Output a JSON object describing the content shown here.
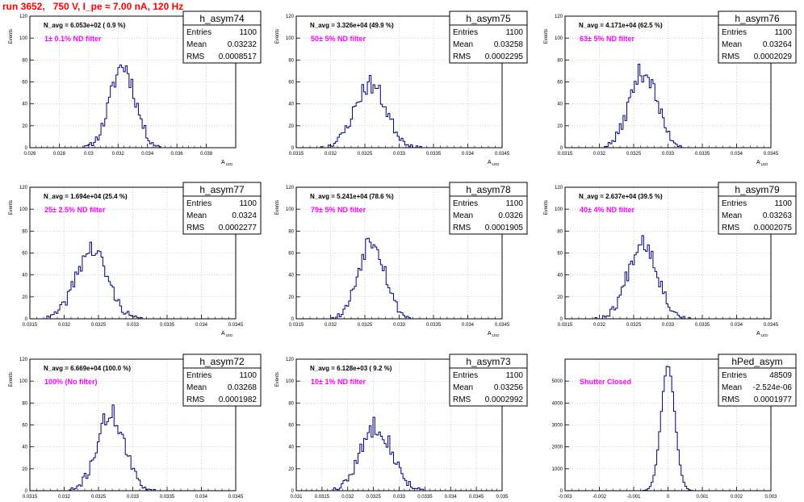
{
  "page_title": "run 3652,   750 V, I_pe ≈ 7.00 nA, 120 Hz",
  "colors": {
    "hist": "#000080",
    "annotation": "#ff00ff",
    "title": "#ff0000",
    "grid": "#b4b4b4"
  },
  "stat_labels": {
    "entries": "Entries",
    "mean": "Mean",
    "rms": "RMS"
  },
  "chart_data": [
    {
      "type": "histogram",
      "name": "h_asym74",
      "entries": "1100",
      "mean": "0.03232",
      "rms": "0.0008517",
      "navg": "N_avg = 6.053e+02 ( 0.9 %)",
      "annotation": "1± 0.1% ND filter",
      "xlabel": "A_LED",
      "ylabel": "Events",
      "xlim": [
        0.026,
        0.04
      ],
      "ylim": [
        0,
        120
      ],
      "grid": true,
      "xticks": [
        0.026,
        0.028,
        0.03,
        0.032,
        0.034,
        0.036,
        0.038
      ],
      "xtick_labels": [
        "0.026",
        "0.028",
        "0.03",
        "0.032",
        "0.034",
        "0.036",
        "0.038"
      ],
      "yticks": [
        0,
        20,
        40,
        60,
        80,
        100,
        120
      ],
      "peak_x": 0.03232,
      "sigma": 0.00085,
      "peak_y": 75,
      "seed": 11
    },
    {
      "type": "histogram",
      "name": "h_asym75",
      "entries": "1100",
      "mean": "0.03258",
      "rms": "0.0002295",
      "navg": "N_avg = 3.326e+04 (49.9 %)",
      "annotation": "50± 5% ND filter",
      "xlabel": "A_LED",
      "ylabel": "Events",
      "xlim": [
        0.0315,
        0.0345
      ],
      "ylim": [
        0,
        120
      ],
      "grid": true,
      "xticks": [
        0.0315,
        0.032,
        0.0325,
        0.033,
        0.0335,
        0.034,
        0.0345
      ],
      "xtick_labels": [
        "0.0315",
        "0.032",
        "0.0325",
        "0.033",
        "0.0335",
        "0.034",
        "0.0345"
      ],
      "yticks": [
        0,
        20,
        40,
        60,
        80,
        100,
        120
      ],
      "peak_x": 0.03258,
      "sigma": 0.00023,
      "peak_y": 58,
      "seed": 23
    },
    {
      "type": "histogram",
      "name": "h_asym76",
      "entries": "1100",
      "mean": "0.03264",
      "rms": "0.0002029",
      "navg": "N_avg = 4.171e+04 (62.5 %)",
      "annotation": "63± 5% ND filter",
      "xlabel": "A_LED",
      "ylabel": "Events",
      "xlim": [
        0.0315,
        0.0345
      ],
      "ylim": [
        0,
        120
      ],
      "grid": true,
      "xticks": [
        0.0315,
        0.032,
        0.0325,
        0.033,
        0.0335,
        0.034,
        0.0345
      ],
      "xtick_labels": [
        "0.0315",
        "0.032",
        "0.0325",
        "0.033",
        "0.0335",
        "0.034",
        "0.0345"
      ],
      "yticks": [
        0,
        20,
        40,
        60,
        80,
        100,
        120
      ],
      "peak_x": 0.03264,
      "sigma": 0.0002,
      "peak_y": 70,
      "seed": 37
    },
    {
      "type": "histogram",
      "name": "h_asym77",
      "entries": "1100",
      "mean": "0.0324",
      "rms": "0.0002277",
      "navg": "N_avg = 1.694e+04 (25.4 %)",
      "annotation": "25± 2.5% ND filter",
      "xlabel": "A_LED",
      "ylabel": "Events",
      "xlim": [
        0.0315,
        0.0345
      ],
      "ylim": [
        0,
        120
      ],
      "grid": true,
      "xticks": [
        0.0315,
        0.032,
        0.0325,
        0.033,
        0.0335,
        0.034,
        0.0345
      ],
      "xtick_labels": [
        "0.0315",
        "0.032",
        "0.0325",
        "0.033",
        "0.0335",
        "0.034",
        "0.0345"
      ],
      "yticks": [
        0,
        20,
        40,
        60,
        80,
        100,
        120
      ],
      "peak_x": 0.0324,
      "sigma": 0.00023,
      "peak_y": 63,
      "seed": 41
    },
    {
      "type": "histogram",
      "name": "h_asym78",
      "entries": "1100",
      "mean": "0.0326",
      "rms": "0.0001905",
      "navg": "N_avg = 5.241e+04 (78.6 %)",
      "annotation": "79± 5% ND filter",
      "xlabel": "A_LED",
      "ylabel": "Events",
      "xlim": [
        0.0315,
        0.0345
      ],
      "ylim": [
        0,
        120
      ],
      "grid": true,
      "xticks": [
        0.0315,
        0.032,
        0.0325,
        0.033,
        0.0335,
        0.034,
        0.0345
      ],
      "xtick_labels": [
        "0.0315",
        "0.032",
        "0.0325",
        "0.033",
        "0.0335",
        "0.034",
        "0.0345"
      ],
      "yticks": [
        0,
        20,
        40,
        60,
        80,
        100,
        120
      ],
      "peak_x": 0.0326,
      "sigma": 0.00019,
      "peak_y": 74,
      "seed": 53
    },
    {
      "type": "histogram",
      "name": "h_asym79",
      "entries": "1100",
      "mean": "0.03263",
      "rms": "0.0002075",
      "navg": "N_avg = 2.637e+04 (39.5 %)",
      "annotation": "40± 4% ND filter",
      "xlabel": "A_LED",
      "ylabel": "Events",
      "xlim": [
        0.0315,
        0.0345
      ],
      "ylim": [
        0,
        120
      ],
      "grid": true,
      "xticks": [
        0.0315,
        0.032,
        0.0325,
        0.033,
        0.0335,
        0.034,
        0.0345
      ],
      "xtick_labels": [
        "0.0315",
        "0.032",
        "0.0325",
        "0.033",
        "0.0335",
        "0.034",
        "0.0345"
      ],
      "yticks": [
        0,
        20,
        40,
        60,
        80,
        100,
        120
      ],
      "peak_x": 0.03263,
      "sigma": 0.00021,
      "peak_y": 72,
      "seed": 67
    },
    {
      "type": "histogram",
      "name": "h_asym72",
      "entries": "1100",
      "mean": "0.03268",
      "rms": "0.0001982",
      "navg": "N_avg = 6.669e+04 (100.0 %)",
      "annotation": "100% (No filter)",
      "xlabel": "A_LED",
      "ylabel": "Events",
      "xlim": [
        0.0315,
        0.0345
      ],
      "ylim": [
        0,
        120
      ],
      "grid": true,
      "xticks": [
        0.0315,
        0.032,
        0.0325,
        0.033,
        0.0335,
        0.034,
        0.0345
      ],
      "xtick_labels": [
        "0.0315",
        "0.032",
        "0.0325",
        "0.033",
        "0.0335",
        "0.034",
        "0.0345"
      ],
      "yticks": [
        0,
        20,
        40,
        60,
        80,
        100,
        120
      ],
      "peak_x": 0.03268,
      "sigma": 0.0002,
      "peak_y": 70,
      "seed": 71
    },
    {
      "type": "histogram",
      "name": "h_asym73",
      "entries": "1100",
      "mean": "0.03256",
      "rms": "0.0002992",
      "navg": "N_avg = 6.128e+03 ( 9.2 %)",
      "annotation": "10± 1% ND filter",
      "xlabel": "A_LED",
      "ylabel": "Events",
      "xlim": [
        0.031,
        0.035
      ],
      "ylim": [
        0,
        120
      ],
      "grid": true,
      "xticks": [
        0.031,
        0.0315,
        0.032,
        0.0325,
        0.033,
        0.0335,
        0.034,
        0.0345,
        0.035
      ],
      "xtick_labels": [
        "0.031",
        "0.0315",
        "0.032",
        "0.0325",
        "0.033",
        "0.0335",
        "0.034",
        "0.0345",
        "0.035"
      ],
      "yticks": [
        0,
        20,
        40,
        60,
        80,
        100,
        120
      ],
      "peak_x": 0.03256,
      "sigma": 0.0003,
      "peak_y": 60,
      "seed": 83
    },
    {
      "type": "histogram",
      "name": "hPed_asym",
      "entries": "48509",
      "mean": "-2.524e-06",
      "rms": "0.0001977",
      "navg": "",
      "annotation": "Shutter Closed",
      "xlabel": "",
      "ylabel": "",
      "xlim": [
        -0.003,
        0.003
      ],
      "ylim": [
        0,
        6000
      ],
      "grid": true,
      "xticks": [
        -0.003,
        -0.002,
        -0.001,
        0,
        0.001,
        0.002,
        0.003
      ],
      "xtick_labels": [
        "-0.003",
        "-0.002",
        "-0.001",
        "0",
        "0.001",
        "0.002",
        "0.003"
      ],
      "yticks": [
        0,
        1000,
        2000,
        3000,
        4000,
        5000
      ],
      "peak_x": 0.0,
      "sigma": 0.0002,
      "peak_y": 5700,
      "seed": 97
    }
  ]
}
